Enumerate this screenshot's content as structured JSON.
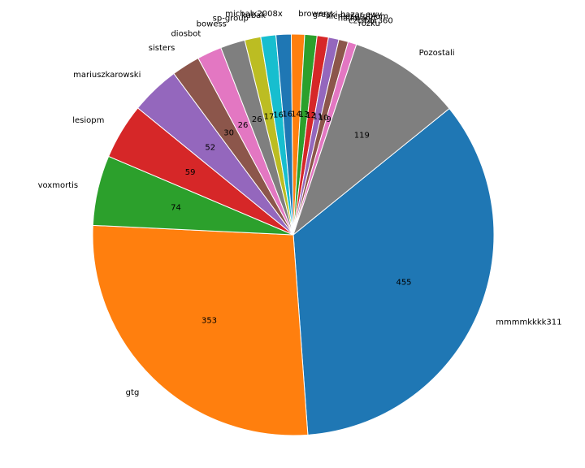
{
  "chart_data": {
    "type": "pie",
    "title": "",
    "start_angle_deg": 39,
    "direction": "clockwise",
    "value_labels_shown": true,
    "slices": [
      {
        "label": "mmmmkkkk311",
        "value": 455,
        "color": "#1f77b4"
      },
      {
        "label": "gtg",
        "value": 353,
        "color": "#ff7f0e"
      },
      {
        "label": "voxmortis",
        "value": 74,
        "color": "#2ca02c"
      },
      {
        "label": "lesiopm",
        "value": 59,
        "color": "#d62728"
      },
      {
        "label": "mariuszkarowski",
        "value": 52,
        "color": "#9467bd"
      },
      {
        "label": "sisters",
        "value": 30,
        "color": "#8c564b"
      },
      {
        "label": "diosbot",
        "value": 26,
        "color": "#e377c2"
      },
      {
        "label": "bowess",
        "value": 26,
        "color": "#7f7f7f"
      },
      {
        "label": "sp-group",
        "value": 17,
        "color": "#bcbd22"
      },
      {
        "label": "kubak",
        "value": 16,
        "color": "#17becf"
      },
      {
        "label": "michalx2008x",
        "value": 16,
        "color": "#1f77b4"
      },
      {
        "label": "browery",
        "value": 14,
        "color": "#ff7f0e"
      },
      {
        "label": "grecki-bazar-ewy",
        "value": 13,
        "color": "#2ca02c"
      },
      {
        "label": "nicniezgrublem",
        "value": 12,
        "color": "#d62728"
      },
      {
        "label": "hallmann",
        "value": 11,
        "color": "#9467bd"
      },
      {
        "label": "czcibor360",
        "value": 10,
        "color": "#8c564b"
      },
      {
        "label": "rozku",
        "value": 9,
        "color": "#e377c2"
      },
      {
        "label": "Pozostali",
        "value": 119,
        "color": "#7f7f7f"
      }
    ]
  }
}
